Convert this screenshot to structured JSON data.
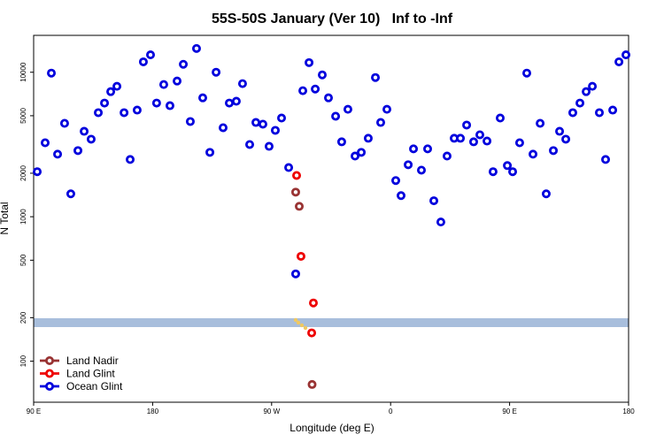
{
  "chart_data": {
    "type": "scatter",
    "title": "55S-50S January (Ver 10)   Inf to -Inf",
    "x_label": "Longitude (deg E)",
    "y_label": "N Total",
    "xlim": [
      90,
      540
    ],
    "xticks": [
      {
        "value": 90,
        "label": "90 E"
      },
      180,
      {
        "value": 270,
        "label": "90 W"
      },
      {
        "value": 360,
        "label": "0"
      },
      {
        "value": 450,
        "label": "90 E"
      },
      {
        "value": 540,
        "label": "180"
      }
    ],
    "ylim": [
      52,
      18000
    ],
    "yticks": [
      100,
      200,
      500,
      1000,
      2000,
      5000,
      10000
    ],
    "log_y": true,
    "legend": "bottom left",
    "series": [
      {
        "name": "Land Nadir",
        "color": "#993333",
        "x": [
          288.2,
          290.9,
          300.6
        ],
        "values": [
          1480,
          1180,
          69
        ]
      },
      {
        "name": "Land Glint",
        "color": "#ee0000",
        "x": [
          288.9,
          292.2,
          301.6,
          300.3
        ],
        "values": [
          1930,
          532,
          253,
          157
        ]
      },
      {
        "name": "Ocean Glint",
        "color": "#0000dd",
        "x": [
          92.7,
          98.7,
          103.4,
          108.1,
          113.4,
          118.1,
          123.5,
          128.2,
          133.5,
          138.9,
          143.6,
          148.3,
          153,
          158.4,
          163,
          168.3,
          173,
          178.4,
          183,
          188.4,
          193.1,
          198.5,
          203.2,
          208.5,
          213.2,
          217.9,
          223.3,
          228,
          233.3,
          238,
          243.3,
          248,
          253.4,
          258.1,
          263.4,
          268.1,
          272.8,
          277.5,
          282.9,
          288.2,
          293.6,
          298.3,
          303,
          308.3,
          313,
          318.4,
          323,
          327.7,
          333.1,
          337.8,
          343.1,
          348.5,
          352.5,
          357.2,
          363.9,
          367.9,
          373.3,
          377.3,
          383.3,
          388,
          392.7,
          398,
          402.7,
          408.1,
          412.8,
          417.5,
          422.8,
          427.5,
          432.9,
          437.5,
          442.9,
          448.3,
          452.3,
          457.6,
          463,
          467.7,
          473.1,
          477.7,
          483.1,
          487.8,
          492.5,
          497.8,
          503.2,
          507.9,
          512.6,
          517.9,
          522.6,
          528,
          532.7,
          538
        ],
        "values": [
          2050,
          3250,
          9860,
          2710,
          4430,
          1440,
          2870,
          3900,
          3440,
          5250,
          6120,
          7340,
          7990,
          5250,
          2490,
          5470,
          11800,
          13200,
          6120,
          8220,
          5870,
          8690,
          11350,
          4560,
          14600,
          6650,
          2790,
          10000,
          4130,
          6120,
          6300,
          8340,
          3160,
          4490,
          4370,
          3070,
          3960,
          4820,
          2190,
          402,
          7450,
          11660,
          7650,
          9590,
          6650,
          4960,
          3300,
          5540,
          2630,
          2790,
          3490,
          9190,
          4490,
          5540,
          1780,
          1400,
          2290,
          2950,
          2100,
          2950,
          1290,
          919,
          2630,
          3490,
          3490,
          4310,
          3300,
          3690,
          3340,
          2050,
          4820,
          2260,
          2050,
          3250,
          9860,
          2710,
          4430,
          1440,
          2870,
          3900,
          3440,
          5250,
          6120,
          7340,
          7990,
          5250,
          2490,
          5470,
          11800,
          13200
        ]
      }
    ]
  }
}
